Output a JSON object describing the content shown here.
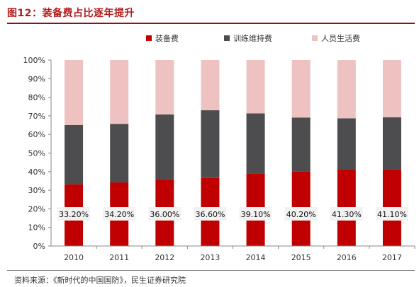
{
  "figure_title": "图12：装备费占比逐年提升",
  "source": "资料来源：《新时代的中国国防》，民生证券研究院",
  "colors": {
    "title": "#b11d1d",
    "equipment": "#c00000",
    "training": "#4d4d4f",
    "personnel": "#efc2c2",
    "label_bg": "#f2f2f2"
  },
  "chart_data": {
    "type": "bar",
    "stacked": true,
    "percent_stacked": true,
    "categories": [
      "2010",
      "2011",
      "2012",
      "2013",
      "2014",
      "2015",
      "2016",
      "2017"
    ],
    "series": [
      {
        "name": "装备费",
        "values": [
          33.2,
          34.2,
          36.0,
          36.6,
          39.1,
          40.2,
          41.3,
          41.1
        ]
      },
      {
        "name": "训练维持费",
        "values": [
          31.9,
          31.5,
          34.8,
          36.4,
          32.2,
          28.9,
          27.4,
          28.1
        ]
      },
      {
        "name": "人员生活费",
        "values": [
          34.9,
          34.3,
          29.2,
          27.0,
          28.7,
          30.9,
          31.3,
          30.8
        ]
      }
    ],
    "data_labels": [
      "33.20%",
      "34.20%",
      "36.00%",
      "36.60%",
      "39.10%",
      "40.20%",
      "41.30%",
      "41.10%"
    ],
    "y_ticks": [
      "0%",
      "10%",
      "20%",
      "30%",
      "40%",
      "50%",
      "60%",
      "70%",
      "80%",
      "90%",
      "100%"
    ],
    "ylim": [
      0,
      100
    ],
    "legend_position": "top",
    "grid": false
  }
}
